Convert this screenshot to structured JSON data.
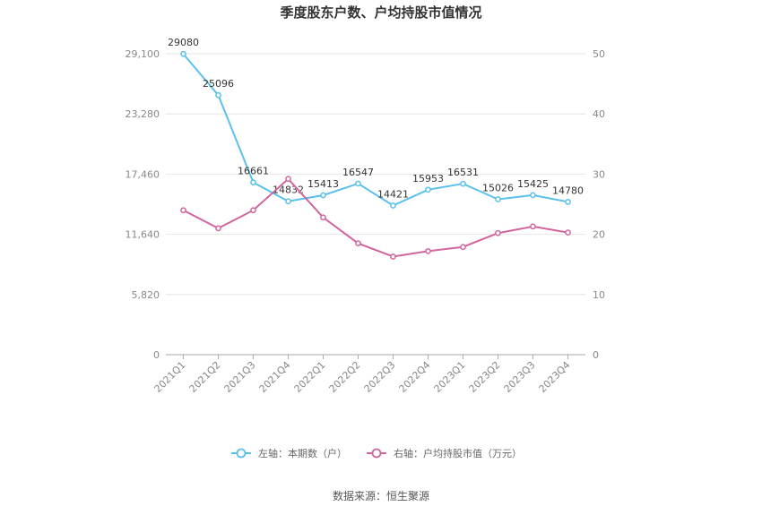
{
  "chart_data": {
    "type": "line",
    "title": "季度股东户数、户均持股市值情况",
    "categories": [
      "2021Q1",
      "2021Q2",
      "2021Q3",
      "2021Q4",
      "2022Q1",
      "2022Q2",
      "2022Q3",
      "2022Q4",
      "2023Q1",
      "2023Q2",
      "2023Q3",
      "2023Q4"
    ],
    "left_axis": {
      "ticks": [
        "0",
        "5,820",
        "11,640",
        "17,460",
        "23,280",
        "29,100"
      ],
      "ylim": [
        0,
        29100
      ]
    },
    "right_axis": {
      "ticks": [
        "0",
        "10",
        "20",
        "30",
        "40",
        "50"
      ],
      "ylim": [
        0,
        50
      ]
    },
    "series": [
      {
        "name": "左轴：本期数（户）",
        "axis": "left",
        "color": "#5bc0eb",
        "values": [
          29080,
          25096,
          16661,
          14832,
          15413,
          16547,
          14421,
          15953,
          16531,
          15026,
          15425,
          14780
        ],
        "labels": [
          "29080",
          "25096",
          "16661",
          "14832",
          "15413",
          "16547",
          "14421",
          "15953",
          "16531",
          "15026",
          "15425",
          "14780"
        ]
      },
      {
        "name": "右轴：户均持股市值（万元）",
        "axis": "right",
        "color": "#d2649e",
        "values": [
          24.0,
          21.0,
          24.0,
          29.2,
          22.8,
          18.5,
          16.3,
          17.2,
          17.9,
          20.2,
          21.3,
          20.3
        ]
      }
    ],
    "grid": true,
    "legend_position": "bottom",
    "source": "数据来源：恒生聚源"
  }
}
